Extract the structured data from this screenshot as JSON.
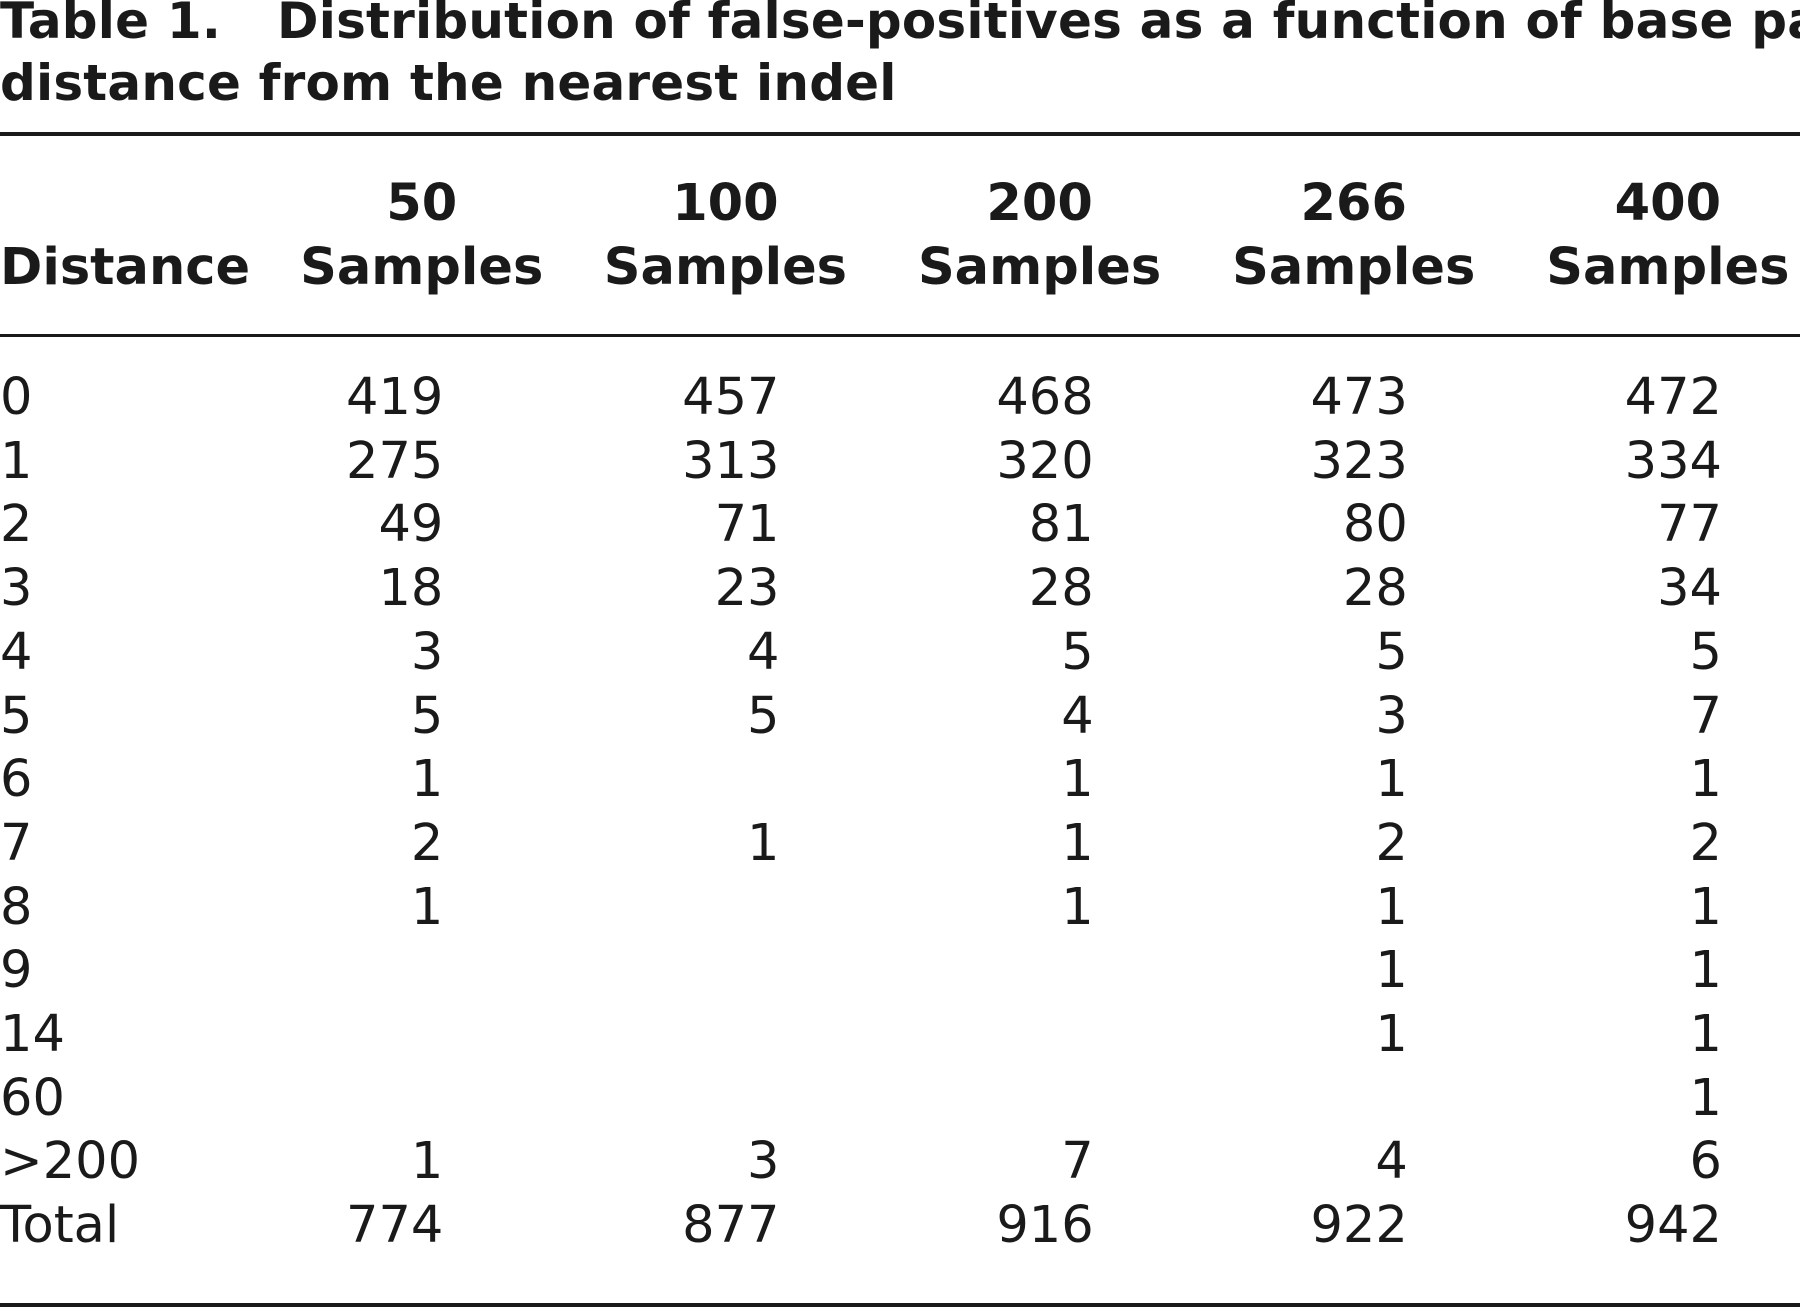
{
  "caption": {
    "label": "Table 1.",
    "title_line1": "Distribution of false-positives as a function of base pair",
    "title_line2": "distance from the nearest indel"
  },
  "table": {
    "columns": [
      {
        "line1": "",
        "line2": "Distance"
      },
      {
        "line1": "50",
        "line2": "Samples"
      },
      {
        "line1": "100",
        "line2": "Samples"
      },
      {
        "line1": "200",
        "line2": "Samples"
      },
      {
        "line1": "266",
        "line2": "Samples"
      },
      {
        "line1": "400",
        "line2": "Samples"
      }
    ],
    "rows": [
      [
        "0",
        "419",
        "457",
        "468",
        "473",
        "472"
      ],
      [
        "1",
        "275",
        "313",
        "320",
        "323",
        "334"
      ],
      [
        "2",
        "49",
        "71",
        "81",
        "80",
        "77"
      ],
      [
        "3",
        "18",
        "23",
        "28",
        "28",
        "34"
      ],
      [
        "4",
        "3",
        "4",
        "5",
        "5",
        "5"
      ],
      [
        "5",
        "5",
        "5",
        "4",
        "3",
        "7"
      ],
      [
        "6",
        "1",
        "",
        "1",
        "1",
        "1"
      ],
      [
        "7",
        "2",
        "1",
        "1",
        "2",
        "2"
      ],
      [
        "8",
        "1",
        "",
        "1",
        "1",
        "1"
      ],
      [
        "9",
        "",
        "",
        "",
        "1",
        "1"
      ],
      [
        "14",
        "",
        "",
        "",
        "1",
        "1"
      ],
      [
        "60",
        "",
        "",
        "",
        "",
        "1"
      ],
      [
        ">200",
        "1",
        "3",
        "7",
        "4",
        "6"
      ],
      [
        "Total",
        "774",
        "877",
        "916",
        "922",
        "942"
      ]
    ]
  }
}
